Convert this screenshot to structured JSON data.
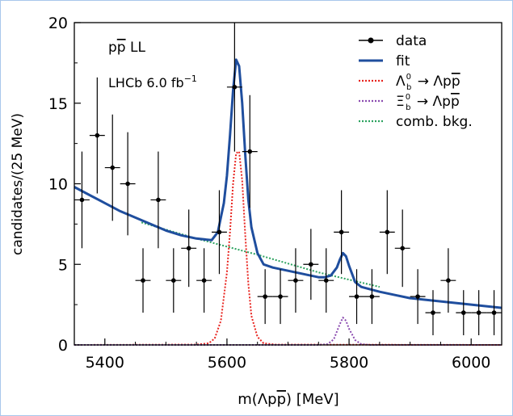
{
  "chart_data": {
    "type": "scatter",
    "xlabel": "m(Λp p̅) [MeV]",
    "ylabel": "candidates/(25 MeV)",
    "xlim": [
      5350,
      6050
    ],
    "ylim": [
      0,
      20
    ],
    "xticks": [
      "5400",
      "5600",
      "5800",
      "6000"
    ],
    "yticks": [
      "0",
      "5",
      "10",
      "15",
      "20"
    ],
    "annotations": [
      "p p̅  LL",
      "LHCb 6.0 fb⁻¹"
    ],
    "legend_position": "top-right",
    "legend": [
      {
        "key": "data",
        "label": "data"
      },
      {
        "key": "fit",
        "label": "fit"
      },
      {
        "key": "lb",
        "label": "Λ⁰ᵦ → Λp p̅"
      },
      {
        "key": "xib",
        "label": "Ξ⁰ᵦ → Λp p̅"
      },
      {
        "key": "comb",
        "label": "comb. bkg."
      }
    ],
    "legend_math": {
      "lb": {
        "base": "Λ",
        "sup": "0",
        "sub": "b",
        "rest": "→ Λp p̅"
      },
      "xib": {
        "base": "Ξ",
        "sup": "0",
        "sub": "b",
        "rest": "→ Λp p̅"
      }
    },
    "data_points": [
      {
        "x": 5362.5,
        "y": 9,
        "yerr": 3
      },
      {
        "x": 5387.5,
        "y": 13,
        "yerr": 3.6
      },
      {
        "x": 5412.5,
        "y": 11,
        "yerr": 3.3
      },
      {
        "x": 5437.5,
        "y": 10,
        "yerr": 3.2
      },
      {
        "x": 5462.5,
        "y": 4,
        "yerr": 2
      },
      {
        "x": 5487.5,
        "y": 9,
        "yerr": 3
      },
      {
        "x": 5512.5,
        "y": 4,
        "yerr": 2
      },
      {
        "x": 5537.5,
        "y": 6,
        "yerr": 2.4
      },
      {
        "x": 5562.5,
        "y": 4,
        "yerr": 2
      },
      {
        "x": 5587.5,
        "y": 7,
        "yerr": 2.6
      },
      {
        "x": 5612.5,
        "y": 16,
        "yerr": 4
      },
      {
        "x": 5637.5,
        "y": 12,
        "yerr": 3.5
      },
      {
        "x": 5662.5,
        "y": 3,
        "yerr": 1.7
      },
      {
        "x": 5687.5,
        "y": 3,
        "yerr": 1.7
      },
      {
        "x": 5712.5,
        "y": 4,
        "yerr": 2
      },
      {
        "x": 5737.5,
        "y": 5,
        "yerr": 2.2
      },
      {
        "x": 5762.5,
        "y": 4,
        "yerr": 2
      },
      {
        "x": 5787.5,
        "y": 7,
        "yerr": 2.6
      },
      {
        "x": 5812.5,
        "y": 3,
        "yerr": 1.7
      },
      {
        "x": 5837.5,
        "y": 3,
        "yerr": 1.7
      },
      {
        "x": 5862.5,
        "y": 7,
        "yerr": 2.6
      },
      {
        "x": 5887.5,
        "y": 6,
        "yerr": 2.4
      },
      {
        "x": 5912.5,
        "y": 3,
        "yerr": 1.7
      },
      {
        "x": 5937.5,
        "y": 2,
        "yerr": 1.4
      },
      {
        "x": 5962.5,
        "y": 4,
        "yerr": 2
      },
      {
        "x": 5987.5,
        "y": 2,
        "yerr": 1.4
      },
      {
        "x": 6012.5,
        "y": 2,
        "yerr": 1.4
      },
      {
        "x": 6037.5,
        "y": 2,
        "yerr": 1.4
      }
    ],
    "bin_width": 25,
    "series": [
      {
        "key": "fit",
        "color": "#1f4e9e",
        "style": "solid",
        "x": [
          5350,
          5375,
          5400,
          5425,
          5450,
          5475,
          5500,
          5525,
          5550,
          5575,
          5585,
          5595,
          5600,
          5605,
          5610,
          5615,
          5620,
          5625,
          5630,
          5635,
          5640,
          5650,
          5660,
          5675,
          5700,
          5725,
          5750,
          5760,
          5770,
          5780,
          5785,
          5790,
          5795,
          5800,
          5810,
          5820,
          5830,
          5850,
          5875,
          5900,
          5925,
          5950,
          5975,
          6000,
          6025,
          6050
        ],
        "y": [
          9.8,
          9.3,
          8.8,
          8.3,
          7.9,
          7.5,
          7.1,
          6.8,
          6.6,
          6.5,
          7.0,
          8.8,
          10.5,
          13.0,
          15.8,
          17.7,
          17.3,
          15.0,
          11.8,
          9.0,
          7.3,
          5.7,
          5.0,
          4.8,
          4.6,
          4.4,
          4.2,
          4.2,
          4.3,
          4.8,
          5.3,
          5.7,
          5.5,
          4.9,
          3.9,
          3.6,
          3.5,
          3.3,
          3.1,
          2.9,
          2.8,
          2.7,
          2.6,
          2.5,
          2.4,
          2.3
        ]
      },
      {
        "key": "lb",
        "color": "#e8241f",
        "style": "dotted",
        "x": [
          5350,
          5550,
          5570,
          5580,
          5590,
          5600,
          5605,
          5610,
          5615,
          5620,
          5625,
          5630,
          5635,
          5640,
          5650,
          5660,
          5680,
          6050
        ],
        "y": [
          0,
          0.02,
          0.1,
          0.4,
          1.5,
          4.5,
          7.0,
          10.0,
          11.9,
          12.0,
          10.2,
          6.8,
          3.8,
          1.8,
          0.5,
          0.1,
          0.02,
          0
        ]
      },
      {
        "key": "xib",
        "color": "#8b4bb0",
        "style": "dotted",
        "x": [
          5350,
          5750,
          5765,
          5775,
          5785,
          5790,
          5795,
          5800,
          5810,
          5820,
          5835,
          6050
        ],
        "y": [
          0,
          0,
          0.05,
          0.35,
          1.3,
          1.7,
          1.5,
          1.0,
          0.3,
          0.05,
          0,
          0
        ]
      },
      {
        "key": "comb",
        "color": "#2ca25f",
        "style": "dotted",
        "x": [
          5460,
          5550,
          5650,
          5750,
          5850
        ],
        "y": [
          7.6,
          6.6,
          5.6,
          4.5,
          3.6
        ]
      }
    ]
  }
}
